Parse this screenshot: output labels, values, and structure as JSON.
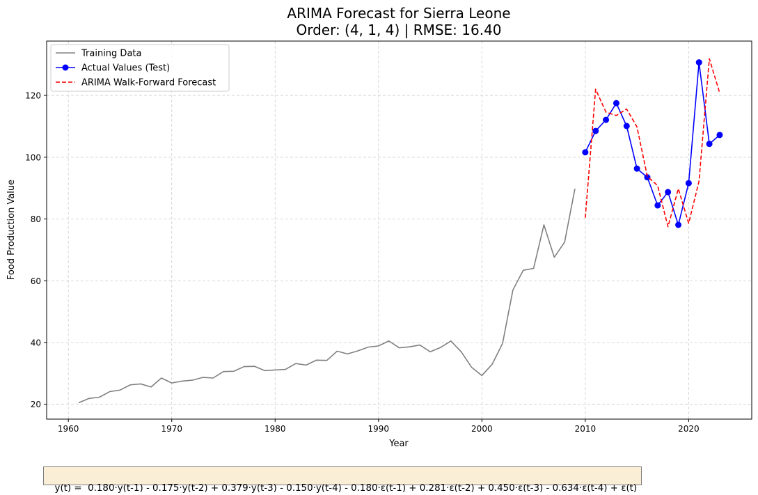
{
  "chart_data": {
    "type": "line",
    "title": "ARIMA Forecast for Sierra Leone",
    "subtitle": "Order: (4, 1, 4) | RMSE: 16.40",
    "xlabel": "Year",
    "ylabel": "Food Production Value",
    "xlim": [
      1957.9,
      2026.1
    ],
    "ylim": [
      15.2,
      137.6
    ],
    "xticks": [
      1960,
      1970,
      1980,
      1990,
      2000,
      2010,
      2020
    ],
    "yticks": [
      20,
      40,
      60,
      80,
      100,
      120
    ],
    "grid": true,
    "legend_position": "top-left",
    "series": [
      {
        "name": "Training Data",
        "color": "#808080",
        "style": "solid",
        "marker": "none",
        "x": [
          1961,
          1962,
          1963,
          1964,
          1965,
          1966,
          1967,
          1968,
          1969,
          1970,
          1971,
          1972,
          1973,
          1974,
          1975,
          1976,
          1977,
          1978,
          1979,
          1980,
          1981,
          1982,
          1983,
          1984,
          1985,
          1986,
          1987,
          1988,
          1989,
          1990,
          1991,
          1992,
          1993,
          1994,
          1995,
          1996,
          1997,
          1998,
          1999,
          2000,
          2001,
          2002,
          2003,
          2004,
          2005,
          2006,
          2007,
          2008,
          2009
        ],
        "values": [
          20.5,
          21.9,
          22.3,
          24.1,
          24.6,
          26.3,
          26.6,
          25.6,
          28.5,
          26.9,
          27.5,
          27.8,
          28.7,
          28.5,
          30.6,
          30.7,
          32.2,
          32.3,
          30.9,
          31.1,
          31.3,
          33.2,
          32.7,
          34.3,
          34.2,
          37.2,
          36.3,
          37.3,
          38.5,
          38.9,
          40.5,
          38.3,
          38.6,
          39.2,
          37.0,
          38.4,
          40.5,
          37.0,
          32.0,
          29.3,
          33.0,
          39.7,
          57.0,
          63.4,
          64.0,
          78.1,
          67.6,
          72.5,
          89.8
        ]
      },
      {
        "name": "Actual Values (Test)",
        "color": "#0000ff",
        "style": "solid",
        "marker": "circle",
        "x": [
          2010,
          2011,
          2012,
          2013,
          2014,
          2015,
          2016,
          2017,
          2018,
          2019,
          2020,
          2021,
          2022,
          2023
        ],
        "values": [
          101.6,
          108.5,
          112.1,
          117.5,
          110.1,
          96.3,
          93.5,
          84.4,
          88.7,
          78.1,
          91.6,
          130.7,
          104.3,
          107.2
        ]
      },
      {
        "name": "ARIMA Walk-Forward Forecast",
        "color": "#ff0000",
        "style": "dashed",
        "marker": "none",
        "x": [
          2010,
          2011,
          2012,
          2013,
          2014,
          2015,
          2016,
          2017,
          2018,
          2019,
          2020,
          2021,
          2022,
          2023
        ],
        "values": [
          80.4,
          122.0,
          114.6,
          113.5,
          115.6,
          109.8,
          93.8,
          90.8,
          77.5,
          89.8,
          78.6,
          92.2,
          131.9,
          120.8
        ]
      }
    ]
  },
  "equation": "y(t) =  0.180·y(t-1) - 0.175·y(t-2) + 0.379·y(t-3) - 0.150·y(t-4) - 0.180·ε(t-1) + 0.281·ε(t-2) + 0.450·ε(t-3) - 0.634·ε(t-4) + ε(t)"
}
